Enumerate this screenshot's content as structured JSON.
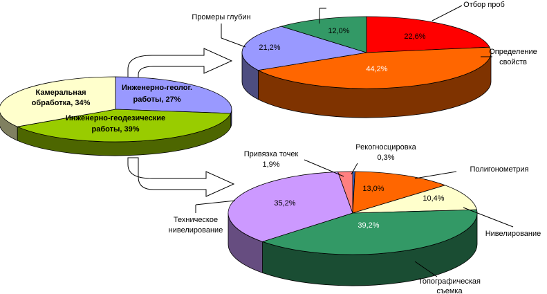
{
  "chart_data": [
    {
      "type": "pie",
      "name": "left",
      "slices": [
        {
          "label": "Инженерно-геолог. работы",
          "value": 27,
          "text": [
            "Инженерно-геолог.",
            "работы, 27%"
          ],
          "color": "#9999ff",
          "side": "#5c5c9c"
        },
        {
          "label": "Инженерно-геодезические работы",
          "value": 39,
          "text": [
            "Инженерно-геодезические",
            "работы, 39%"
          ],
          "color": "#99cc00",
          "side": "#4d6600"
        },
        {
          "label": "Камеральная обработка",
          "value": 34,
          "text": [
            "Камеральная",
            "обработка, 34%"
          ],
          "color": "#ffffcc",
          "side": "#808060"
        }
      ]
    },
    {
      "type": "pie",
      "name": "top-right",
      "slices": [
        {
          "label": "Отбор проб",
          "value": 22.6,
          "pct": "22,6%",
          "color": "#ff0000",
          "side": "#8b0000"
        },
        {
          "label": "Определение свойств",
          "value": 44.2,
          "pct": "44,2%",
          "color": "#ff6600",
          "side": "#7f3300"
        },
        {
          "label": "Промеры глубин",
          "value": 21.2,
          "pct": "21,2%",
          "color": "#9999ff",
          "side": "#4d4d80"
        },
        {
          "label": "",
          "value": 12.0,
          "pct": "12,0%",
          "color": "#339966",
          "side": "#1a4d33"
        }
      ],
      "labels": {
        "sampling": "Отбор проб",
        "properties": [
          "Определение",
          "свойств"
        ],
        "depth": "Промеры глубин"
      }
    },
    {
      "type": "pie",
      "name": "bottom-right",
      "slices": [
        {
          "label": "Рекогносцировка",
          "value": 0.3,
          "pct": "0,3%",
          "color": "#3366cc",
          "side": "#1a3366"
        },
        {
          "label": "Полигонометрия",
          "value": 13.0,
          "pct": "13,0%",
          "color": "#ff6600",
          "side": "#7f3300"
        },
        {
          "label": "Нивелирование",
          "value": 10.4,
          "pct": "10,4%",
          "color": "#ffffcc",
          "side": "#808060"
        },
        {
          "label": "Топографическая съемка",
          "value": 39.2,
          "pct": "39,2%",
          "color": "#339966",
          "side": "#1a4d33"
        },
        {
          "label": "Техническое нивелирование",
          "value": 35.2,
          "pct": "35,2%",
          "color": "#cc99ff",
          "side": "#664d80"
        },
        {
          "label": "Привязка точек",
          "value": 1.9,
          "pct": "1,9%",
          "color": "#ff8080",
          "side": "#804040"
        }
      ],
      "labels": {
        "recon": [
          "Рекогносцировка",
          "0,3%"
        ],
        "binding": [
          "Привязка точек",
          "1,9%"
        ],
        "polygon": "Полигонометрия",
        "leveling": "Нивелирование",
        "tech": [
          "Техническое",
          "нивелирование"
        ],
        "topo": [
          "Топографическая",
          "съемка"
        ]
      }
    }
  ]
}
